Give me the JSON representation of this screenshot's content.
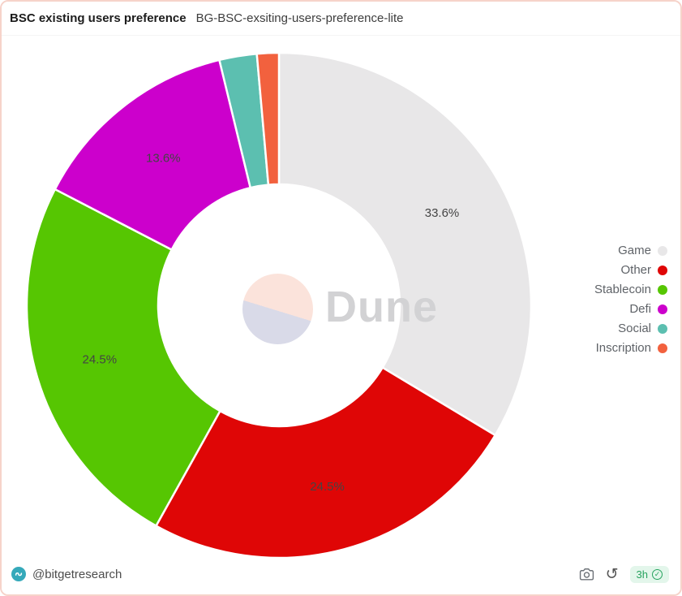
{
  "header": {
    "title": "BSC existing users preference",
    "subtitle": "BG-BSC-exsiting-users-preference-lite"
  },
  "chart_data": {
    "type": "pie",
    "subtype": "donut",
    "title": "BSC existing users preference",
    "start_angle_deg": 0,
    "direction": "clockwise",
    "inner_radius_ratio": 0.48,
    "legend_position": "right",
    "label_min_pct_shown": 5,
    "series": [
      {
        "name": "Game",
        "value": 33.6,
        "label": "33.6%",
        "color": "#e8e7e8"
      },
      {
        "name": "Other",
        "value": 24.5,
        "label": "24.5%",
        "color": "#df0606"
      },
      {
        "name": "Stablecoin",
        "value": 24.5,
        "label": "24.5%",
        "color": "#56c602"
      },
      {
        "name": "Defi",
        "value": 13.6,
        "label": "13.6%",
        "color": "#cc00cc"
      },
      {
        "name": "Social",
        "value": 2.4,
        "label": "",
        "color": "#5cbfb0"
      },
      {
        "name": "Inscription",
        "value": 1.4,
        "label": "",
        "color": "#f2613e"
      }
    ]
  },
  "watermark": {
    "text": "Dune",
    "circle_top_color": "#fbe3db",
    "circle_bottom_color": "#d9dae8",
    "text_color": "#d2d2d4"
  },
  "footer": {
    "author": "@bitgetresearch",
    "refresh_age_badge": "3h"
  },
  "icons": {
    "refresh_glyph": "↺",
    "check_glyph": "✓"
  },
  "colors": {
    "card_border": "#f6d3ca",
    "badge_bg": "#e3f6eb",
    "badge_text": "#27a35f",
    "avatar_bg": "#35a9ba"
  }
}
